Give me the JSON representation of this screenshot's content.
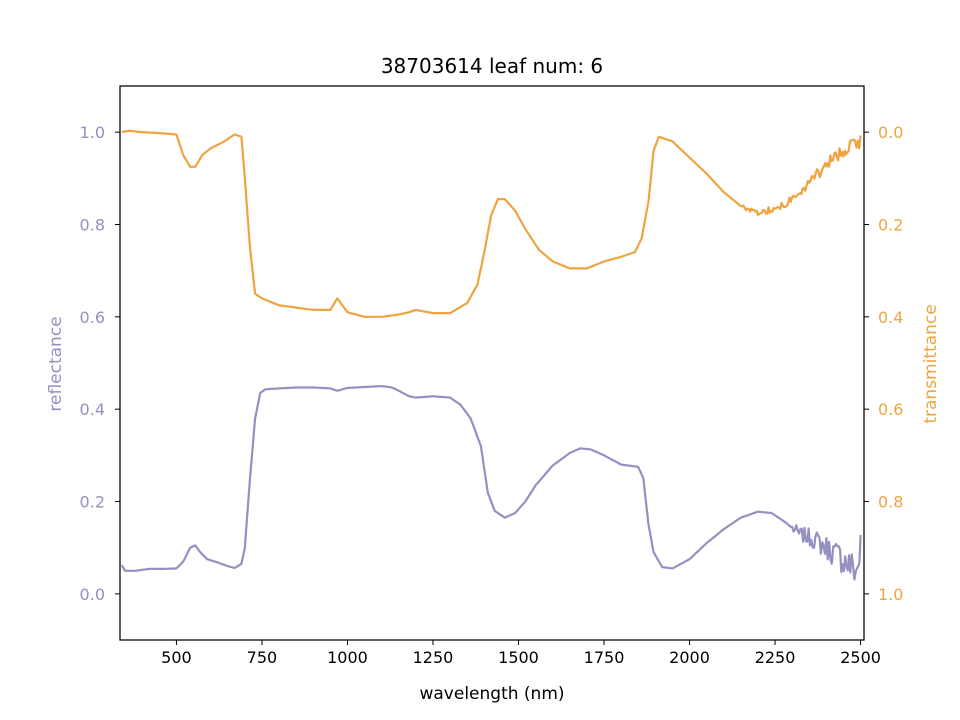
{
  "chart_data": {
    "type": "line",
    "title": "38703614 leaf num: 6",
    "xlabel": "wavelength (nm)",
    "ylabel_left": "reflectance",
    "ylabel_right": "transmittance",
    "xlim": [
      335,
      2510
    ],
    "ylim_left": [
      -0.1,
      1.1
    ],
    "ylim_right_inverted": [
      1.1,
      -0.1
    ],
    "x_ticks": [
      500,
      750,
      1000,
      1250,
      1500,
      1750,
      2000,
      2250,
      2500
    ],
    "y_ticks_left": [
      0.0,
      0.2,
      0.4,
      0.6,
      0.8,
      1.0
    ],
    "y_ticks_right": [
      0.0,
      0.2,
      0.4,
      0.6,
      0.8,
      1.0
    ],
    "colors": {
      "reflectance": "#9590c2",
      "transmittance": "#efa442"
    },
    "series": [
      {
        "name": "reflectance",
        "axis": "left",
        "points": [
          [
            340,
            0.062
          ],
          [
            350,
            0.05
          ],
          [
            380,
            0.05
          ],
          [
            420,
            0.054
          ],
          [
            460,
            0.054
          ],
          [
            500,
            0.055
          ],
          [
            520,
            0.07
          ],
          [
            540,
            0.1
          ],
          [
            555,
            0.105
          ],
          [
            570,
            0.09
          ],
          [
            590,
            0.075
          ],
          [
            620,
            0.068
          ],
          [
            650,
            0.06
          ],
          [
            670,
            0.056
          ],
          [
            690,
            0.065
          ],
          [
            700,
            0.1
          ],
          [
            715,
            0.25
          ],
          [
            730,
            0.38
          ],
          [
            745,
            0.435
          ],
          [
            760,
            0.443
          ],
          [
            800,
            0.445
          ],
          [
            850,
            0.447
          ],
          [
            900,
            0.447
          ],
          [
            950,
            0.445
          ],
          [
            970,
            0.44
          ],
          [
            1000,
            0.446
          ],
          [
            1050,
            0.448
          ],
          [
            1100,
            0.45
          ],
          [
            1130,
            0.447
          ],
          [
            1150,
            0.44
          ],
          [
            1180,
            0.428
          ],
          [
            1200,
            0.425
          ],
          [
            1250,
            0.428
          ],
          [
            1300,
            0.425
          ],
          [
            1330,
            0.41
          ],
          [
            1360,
            0.38
          ],
          [
            1390,
            0.32
          ],
          [
            1410,
            0.22
          ],
          [
            1430,
            0.18
          ],
          [
            1460,
            0.165
          ],
          [
            1490,
            0.175
          ],
          [
            1520,
            0.2
          ],
          [
            1550,
            0.235
          ],
          [
            1600,
            0.278
          ],
          [
            1650,
            0.305
          ],
          [
            1680,
            0.315
          ],
          [
            1710,
            0.313
          ],
          [
            1750,
            0.3
          ],
          [
            1800,
            0.28
          ],
          [
            1850,
            0.275
          ],
          [
            1865,
            0.25
          ],
          [
            1880,
            0.15
          ],
          [
            1895,
            0.09
          ],
          [
            1920,
            0.058
          ],
          [
            1950,
            0.055
          ],
          [
            2000,
            0.075
          ],
          [
            2050,
            0.11
          ],
          [
            2100,
            0.14
          ],
          [
            2150,
            0.165
          ],
          [
            2200,
            0.178
          ],
          [
            2240,
            0.175
          ],
          [
            2280,
            0.155
          ],
          [
            2320,
            0.13
          ],
          [
            2360,
            0.12
          ],
          [
            2400,
            0.1
          ],
          [
            2440,
            0.08
          ],
          [
            2470,
            0.06
          ],
          [
            2490,
            0.05
          ],
          [
            2500,
            0.1
          ]
        ],
        "noise_from_x": 2300,
        "noise_amplitude": 0.03
      },
      {
        "name": "transmittance",
        "axis": "right_inverted",
        "points": [
          [
            340,
            0.0
          ],
          [
            360,
            -0.003
          ],
          [
            400,
            0.0
          ],
          [
            450,
            0.002
          ],
          [
            500,
            0.005
          ],
          [
            520,
            0.05
          ],
          [
            540,
            0.075
          ],
          [
            555,
            0.075
          ],
          [
            575,
            0.05
          ],
          [
            600,
            0.035
          ],
          [
            640,
            0.02
          ],
          [
            670,
            0.005
          ],
          [
            690,
            0.01
          ],
          [
            700,
            0.1
          ],
          [
            715,
            0.25
          ],
          [
            730,
            0.35
          ],
          [
            750,
            0.36
          ],
          [
            800,
            0.375
          ],
          [
            850,
            0.38
          ],
          [
            900,
            0.385
          ],
          [
            950,
            0.385
          ],
          [
            970,
            0.36
          ],
          [
            990,
            0.38
          ],
          [
            1000,
            0.39
          ],
          [
            1050,
            0.4
          ],
          [
            1100,
            0.4
          ],
          [
            1150,
            0.395
          ],
          [
            1180,
            0.39
          ],
          [
            1200,
            0.385
          ],
          [
            1250,
            0.392
          ],
          [
            1300,
            0.392
          ],
          [
            1350,
            0.37
          ],
          [
            1380,
            0.33
          ],
          [
            1400,
            0.26
          ],
          [
            1420,
            0.18
          ],
          [
            1440,
            0.145
          ],
          [
            1460,
            0.145
          ],
          [
            1490,
            0.17
          ],
          [
            1520,
            0.21
          ],
          [
            1560,
            0.255
          ],
          [
            1600,
            0.28
          ],
          [
            1650,
            0.295
          ],
          [
            1700,
            0.295
          ],
          [
            1750,
            0.28
          ],
          [
            1800,
            0.27
          ],
          [
            1840,
            0.26
          ],
          [
            1860,
            0.23
          ],
          [
            1880,
            0.15
          ],
          [
            1895,
            0.04
          ],
          [
            1910,
            0.01
          ],
          [
            1950,
            0.02
          ],
          [
            2000,
            0.055
          ],
          [
            2050,
            0.09
          ],
          [
            2100,
            0.13
          ],
          [
            2150,
            0.16
          ],
          [
            2200,
            0.175
          ],
          [
            2250,
            0.165
          ],
          [
            2300,
            0.145
          ],
          [
            2350,
            0.11
          ],
          [
            2400,
            0.07
          ],
          [
            2450,
            0.04
          ],
          [
            2480,
            0.02
          ],
          [
            2500,
            0.02
          ]
        ],
        "noise_from_x": 2150,
        "noise_amplitude": 0.012
      }
    ]
  }
}
